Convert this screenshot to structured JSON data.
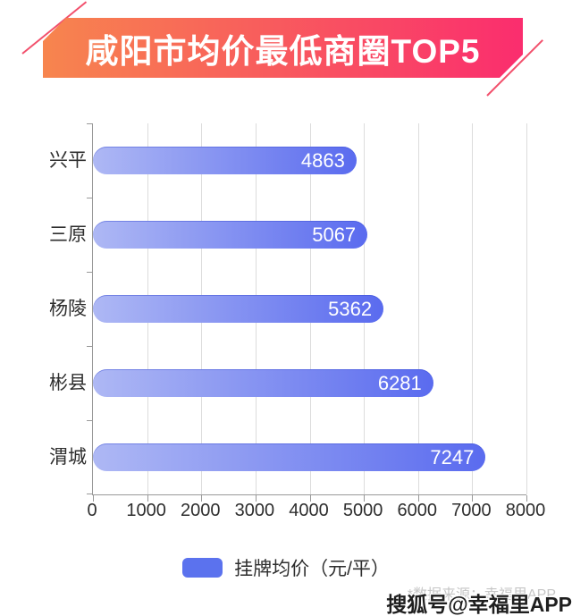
{
  "banner": {
    "title": "咸阳市均价最低商圈TOP5"
  },
  "chart_data": {
    "type": "bar",
    "orientation": "horizontal",
    "title": "咸阳市均价最低商圈TOP5",
    "categories": [
      "兴平",
      "三原",
      "杨陵",
      "彬县",
      "渭城"
    ],
    "values": [
      4863,
      5067,
      5362,
      6281,
      7247
    ],
    "series_name": "挂牌均价（元/平）",
    "xlim": [
      0,
      8000
    ],
    "x_ticks": [
      "0",
      "1000",
      "2000",
      "3000",
      "4000",
      "5000",
      "6000",
      "7000",
      "8000"
    ],
    "grid": true,
    "value_labels": "inside-end",
    "legend_position": "bottom"
  },
  "legend": {
    "label": "挂牌均价（元/平）"
  },
  "footer": {
    "source_note": "*数据来源：幸福里APP",
    "watermark": "搜狐号@幸福里APP"
  },
  "colors": {
    "banner_gradient_start": "#F7854E",
    "banner_gradient_end": "#FA2D6E",
    "banner_accent_line": "#F2506C",
    "bar_gradient_start": "#AEB8F4",
    "bar_gradient_end": "#5A6BEF",
    "bar_value_text": "#FFFFFF",
    "legend_swatch": "#5B72EE",
    "gridline": "#DCDCDC",
    "axis_line": "#999999",
    "text_primary": "#2E2E2E",
    "source_note_text": "#C6C6C6",
    "watermark_text": "#1F1F1F"
  }
}
